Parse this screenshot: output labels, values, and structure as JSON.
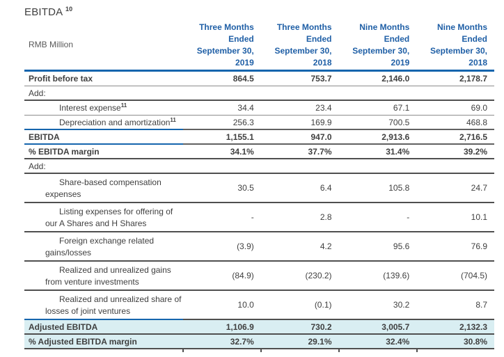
{
  "title": {
    "text": "EBITDA",
    "footnote": "10"
  },
  "colors": {
    "header_text_blue": "#1f5fa6",
    "border_blue": "#1565ad",
    "border_gray": "#8c8c8c",
    "border_dark": "#4f4f4f",
    "highlight_teal": "#d9eef2",
    "body_text": "#3f3f3f",
    "unit_text": "#595959"
  },
  "table": {
    "unit_label": "RMB Million",
    "columns": [
      {
        "label": "Three Months\nEnded\nSeptember 30,\n2019"
      },
      {
        "label": "Three Months\nEnded\nSeptember 30,\n2018"
      },
      {
        "label": "Nine Months\nEnded\nSeptember 30,\n2019"
      },
      {
        "label": "Nine Months\nEnded\nSeptember 30,\n2018"
      }
    ],
    "rows": [
      {
        "label": "Profit before tax",
        "footnote": "",
        "values": [
          "864.5",
          "753.7",
          "2,146.0",
          "2,178.7"
        ],
        "emphasis": true,
        "indent": false,
        "twoline": false,
        "teal": false,
        "border": "gray"
      },
      {
        "label": "Add:",
        "footnote": "",
        "values": [
          "",
          "",
          "",
          ""
        ],
        "emphasis": false,
        "indent": false,
        "twoline": false,
        "teal": false,
        "border": "dark"
      },
      {
        "label": "Interest expense",
        "footnote": "11",
        "values": [
          "34.4",
          "23.4",
          "67.1",
          "69.0"
        ],
        "emphasis": false,
        "indent": true,
        "twoline": false,
        "teal": false,
        "border": "gray"
      },
      {
        "label": "Depreciation and amortization",
        "footnote": "11",
        "values": [
          "256.3",
          "169.9",
          "700.5",
          "468.8"
        ],
        "emphasis": false,
        "indent": true,
        "twoline": false,
        "teal": false,
        "border": "bluegray"
      },
      {
        "label": "EBITDA",
        "footnote": "",
        "values": [
          "1,155.1",
          "947.0",
          "2,913.6",
          "2,716.5"
        ],
        "emphasis": true,
        "indent": false,
        "twoline": false,
        "teal": false,
        "border": "bluegray"
      },
      {
        "label": "% EBITDA margin",
        "footnote": "",
        "values": [
          "34.1%",
          "37.7%",
          "31.4%",
          "39.2%"
        ],
        "emphasis": true,
        "indent": false,
        "twoline": false,
        "teal": false,
        "border": "dark"
      },
      {
        "label": "Add:",
        "footnote": "",
        "values": [
          "",
          "",
          "",
          ""
        ],
        "emphasis": false,
        "indent": false,
        "twoline": false,
        "teal": false,
        "border": "dark"
      },
      {
        "label": "Share-based compensation expenses",
        "footnote": "",
        "values": [
          "30.5",
          "6.4",
          "105.8",
          "24.7"
        ],
        "emphasis": false,
        "indent": true,
        "twoline": true,
        "teal": false,
        "border": "dark"
      },
      {
        "label": "Listing expenses for offering of our A Shares and H Shares",
        "footnote": "",
        "values": [
          "-",
          "2.8",
          "-",
          "10.1"
        ],
        "emphasis": false,
        "indent": true,
        "twoline": true,
        "teal": false,
        "border": "dark"
      },
      {
        "label": "Foreign exchange related gains/losses",
        "footnote": "",
        "values": [
          "(3.9)",
          "4.2",
          "95.6",
          "76.9"
        ],
        "emphasis": false,
        "indent": true,
        "twoline": true,
        "teal": false,
        "border": "dark"
      },
      {
        "label": "Realized and unrealized gains from venture investments",
        "footnote": "",
        "values": [
          "(84.9)",
          "(230.2)",
          "(139.6)",
          "(704.5)"
        ],
        "emphasis": false,
        "indent": true,
        "twoline": true,
        "teal": false,
        "border": "dark"
      },
      {
        "label": "Realized and unrealized share of losses of joint ventures",
        "footnote": "",
        "values": [
          "10.0",
          "(0.1)",
          "30.2",
          "8.7"
        ],
        "emphasis": false,
        "indent": true,
        "twoline": true,
        "teal": false,
        "border": "bluedark"
      },
      {
        "label": "Adjusted EBITDA",
        "footnote": "",
        "values": [
          "1,106.9",
          "730.2",
          "3,005.7",
          "2,132.3"
        ],
        "emphasis": true,
        "indent": false,
        "twoline": false,
        "teal": true,
        "border": "dark"
      },
      {
        "label": "% Adjusted EBITDA margin",
        "footnote": "",
        "values": [
          "32.7%",
          "29.1%",
          "32.4%",
          "30.8%"
        ],
        "emphasis": true,
        "indent": false,
        "twoline": false,
        "teal": true,
        "border": "dark"
      }
    ]
  }
}
